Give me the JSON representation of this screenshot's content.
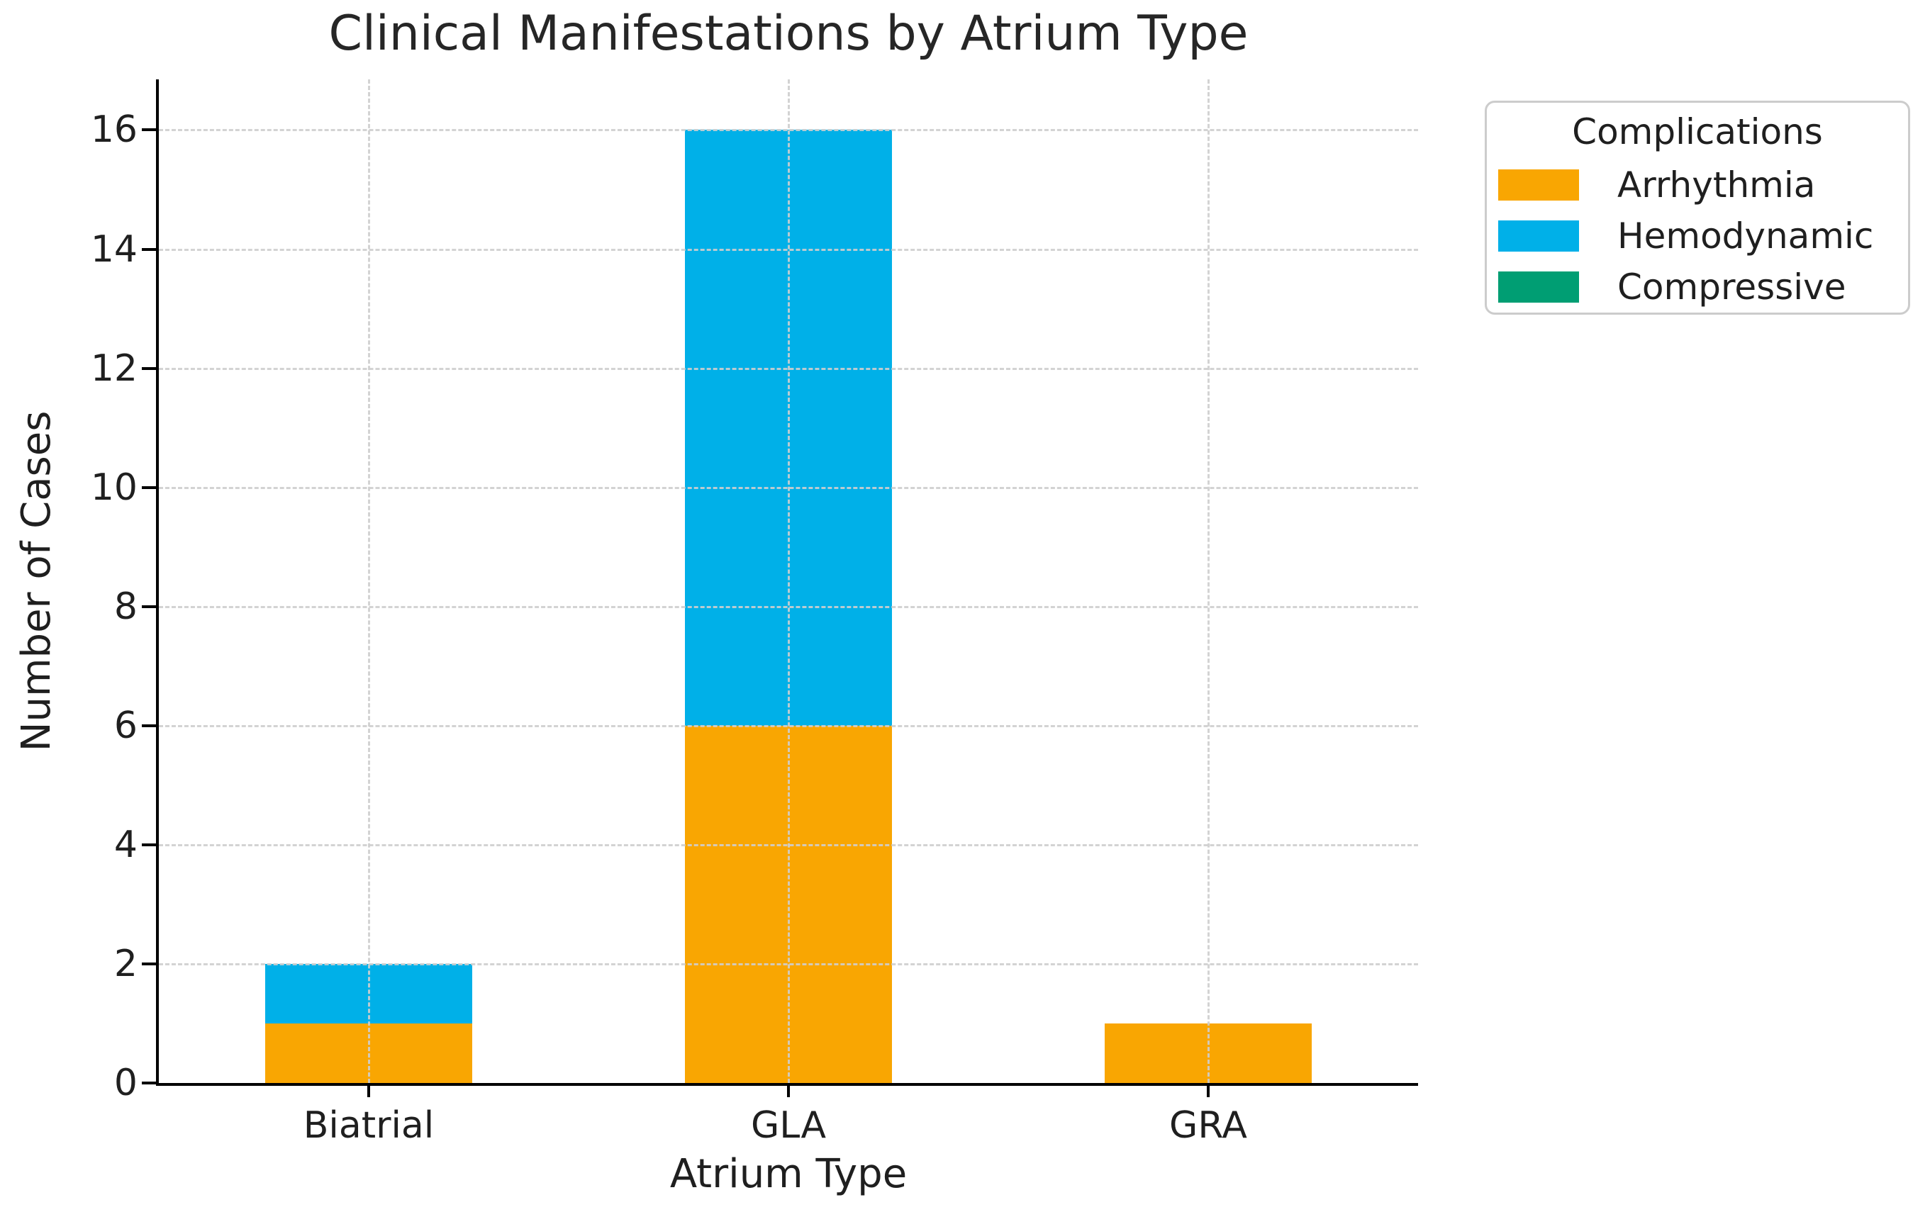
{
  "chart_data": {
    "type": "bar",
    "stacked": true,
    "title": "Clinical Manifestations by Atrium Type",
    "xlabel": "Atrium Type",
    "ylabel": "Number of Cases",
    "categories": [
      "Biatrial",
      "GLA",
      "GRA"
    ],
    "series": [
      {
        "name": "Arrhythmia",
        "color": "#F9A602",
        "values": [
          1,
          6,
          1
        ]
      },
      {
        "name": "Hemodynamic",
        "color": "#00B0E8",
        "values": [
          1,
          10,
          0
        ]
      },
      {
        "name": "Compressive",
        "color": "#009E73",
        "values": [
          0,
          0,
          0
        ]
      }
    ],
    "totals": [
      2,
      16,
      1
    ],
    "y_ticks": [
      0,
      2,
      4,
      6,
      8,
      10,
      12,
      14,
      16
    ],
    "ylim": [
      0,
      16.85
    ],
    "grid": "dashed horizontal and vertical",
    "legend_title": "Complications",
    "legend_position": "upper right"
  },
  "style": {
    "grid_color": "#cfcfcf",
    "axis_color": "#000000",
    "text_color": "#1f1f1f",
    "title_color": "#262626",
    "legend_border_color": "#cccccc",
    "background": "#ffffff"
  }
}
